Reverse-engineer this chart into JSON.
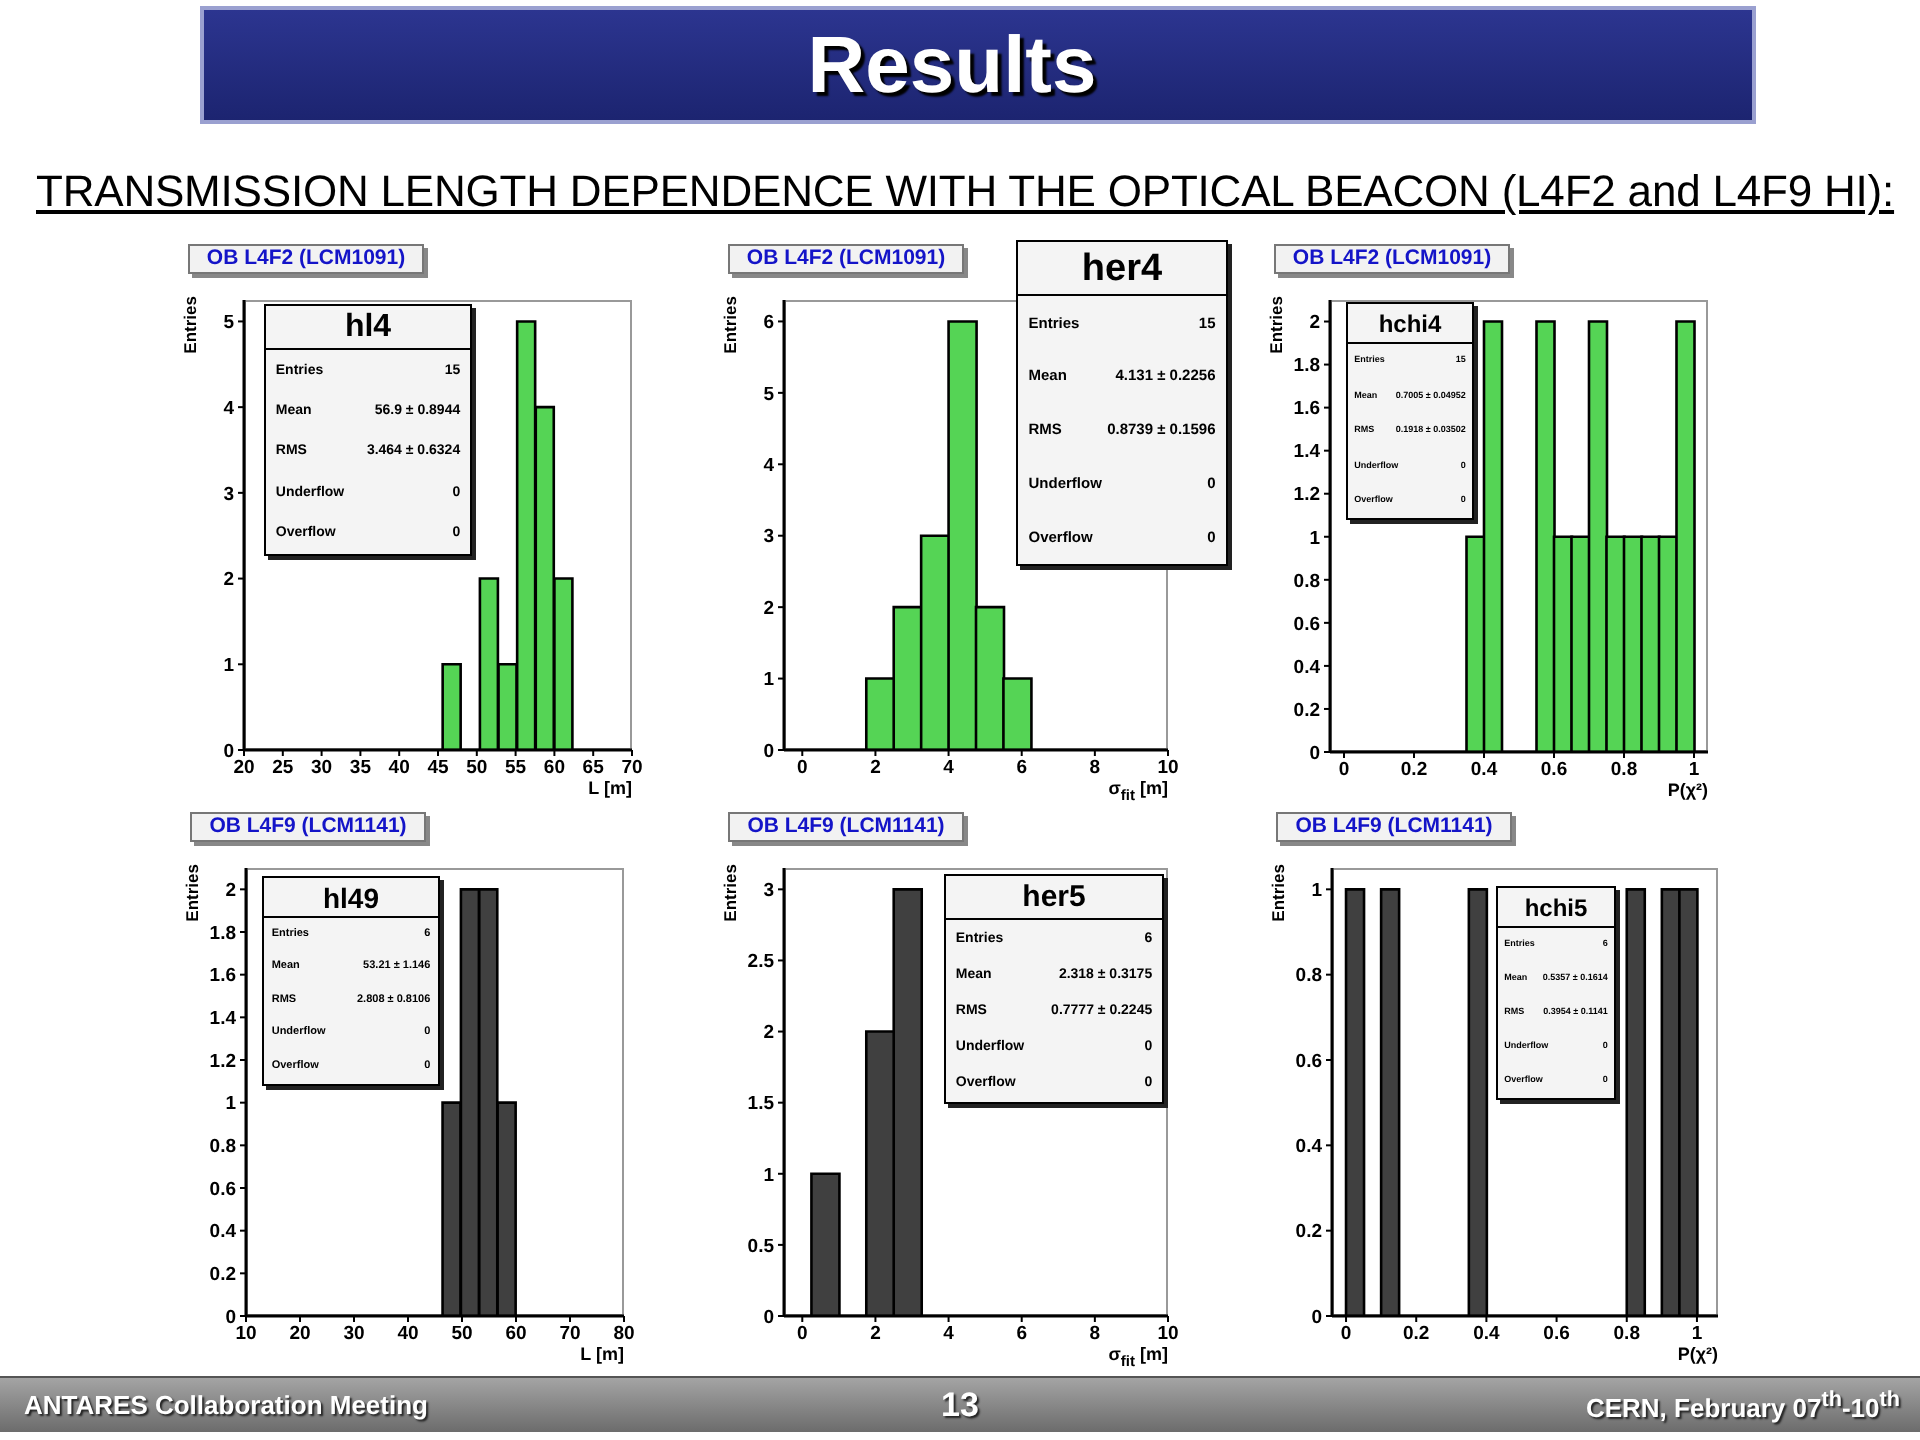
{
  "chart_data": [
    {
      "type": "other",
      "title": "Results",
      "subtitle": "TRANSMISSION LENGTH DEPENDENCE WITH THE OPTICAL BEACON (L4F2 and L4F9 HI):"
    },
    {
      "type": "histogram",
      "title": "OB L4F2 (LCM1091)",
      "xlabel": "L [m]",
      "ylabel": "Entries",
      "bins": [
        45.6,
        48,
        50.4,
        52.8,
        55.2,
        57.6,
        60,
        62.4
      ],
      "values": [
        1,
        0,
        2,
        1,
        5,
        4,
        2
      ],
      "color": "#55d455",
      "xlim": [
        20,
        70
      ],
      "xticks": [
        20,
        25,
        30,
        35,
        40,
        45,
        50,
        55,
        60,
        65,
        70
      ],
      "ylim": [
        0,
        5.25
      ],
      "yticks": [
        0,
        1,
        2,
        3,
        4,
        5
      ],
      "annotations": [
        "hl4",
        "Entries",
        "15",
        "Mean",
        "56.9 ± 0.8944",
        "RMS",
        "3.464 ± 0.6324",
        "Underflow",
        "0",
        "Overflow",
        "0"
      ]
    },
    {
      "type": "histogram",
      "title": "OB L4F2 (LCM1091)",
      "xlabel": "σ$_{fit}$ [m]",
      "ylabel": "Entries",
      "bins": [
        1.75,
        2.5,
        3.25,
        4,
        4.75,
        5.5,
        6.25
      ],
      "values": [
        1,
        2,
        3,
        6,
        2,
        1
      ],
      "color": "#55d455",
      "xlim": [
        -0.5,
        10
      ],
      "xticks": [
        0,
        2,
        4,
        6,
        8,
        10
      ],
      "ylim": [
        0,
        6.3
      ],
      "yticks": [
        0,
        1,
        2,
        3,
        4,
        5,
        6
      ],
      "annotations": [
        "her4",
        "Entries",
        "15",
        "Mean",
        "4.131 ± 0.2256",
        "RMS",
        "0.8739 ± 0.1596",
        "Underflow",
        "0",
        "Overflow",
        "0"
      ]
    },
    {
      "type": "histogram",
      "title": "OB L4F2 (LCM1091)",
      "xlabel": "P(χ²)",
      "ylabel": "Entries",
      "bins": [
        0.35,
        0.4,
        0.45,
        0.5,
        0.55,
        0.6,
        0.65,
        0.7,
        0.75,
        0.8,
        0.85,
        0.9,
        0.95,
        1
      ],
      "values": [
        1,
        2,
        0,
        0,
        2,
        1,
        1,
        2,
        1,
        1,
        1,
        1,
        2
      ],
      "color": "#55d455",
      "xlim": [
        -0.04,
        1.04
      ],
      "xticks": [
        0,
        0.2,
        0.4,
        0.6,
        0.8,
        1
      ],
      "ylim": [
        0,
        2.1
      ],
      "yticks": [
        0,
        0.2,
        0.4,
        0.6,
        0.8,
        1,
        1.2,
        1.4,
        1.6,
        1.8,
        2
      ],
      "annotations": [
        "hchi4",
        "Entries",
        "15",
        "Mean",
        "0.7005 ± 0.04952",
        "RMS",
        "0.1918 ± 0.03502",
        "Underflow",
        "0",
        "Overflow",
        "0"
      ]
    },
    {
      "type": "histogram",
      "title": "OB L4F9 (LCM1141)",
      "xlabel": "L [m]",
      "ylabel": "Entries",
      "bins": [
        46.4,
        49.8,
        53.2,
        56.6,
        60
      ],
      "values": [
        1,
        2,
        2,
        1
      ],
      "color": "#404040",
      "xlim": [
        10,
        80
      ],
      "xticks": [
        10,
        20,
        30,
        40,
        50,
        60,
        70,
        80
      ],
      "ylim": [
        0,
        2.1
      ],
      "yticks": [
        0,
        0.2,
        0.4,
        0.6,
        0.8,
        1,
        1.2,
        1.4,
        1.6,
        1.8,
        2
      ],
      "annotations": [
        "hl49",
        "Entries",
        "6",
        "Mean",
        "53.21 ± 1.146",
        "RMS",
        "2.808 ± 0.8106",
        "Underflow",
        "0",
        "Overflow",
        "0"
      ]
    },
    {
      "type": "histogram",
      "title": "OB L4F9 (LCM1141)",
      "xlabel": "σ$_{fit}$ [m]",
      "ylabel": "Entries",
      "bins": [
        0.25,
        1,
        1.75,
        2.5,
        3.25
      ],
      "values": [
        1,
        0,
        2,
        3
      ],
      "color": "#404040",
      "xlim": [
        -0.5,
        10
      ],
      "xticks": [
        0,
        2,
        4,
        6,
        8,
        10
      ],
      "ylim": [
        0,
        3.15
      ],
      "yticks": [
        0,
        0.5,
        1,
        1.5,
        2,
        2.5,
        3
      ],
      "annotations": [
        "her5",
        "Entries",
        "6",
        "Mean",
        "2.318 ± 0.3175",
        "RMS",
        "0.7777 ± 0.2245",
        "Underflow",
        "0",
        "Overflow",
        "0"
      ]
    },
    {
      "type": "histogram",
      "title": "OB L4F9 (LCM1141)",
      "xlabel": "P(χ²)",
      "ylabel": "Entries",
      "bins": [
        0,
        0.05,
        0.1,
        0.15,
        0.2,
        0.25,
        0.3,
        0.35,
        0.4,
        0.45,
        0.5,
        0.55,
        0.6,
        0.65,
        0.7,
        0.75,
        0.8,
        0.85,
        0.9,
        0.95,
        1
      ],
      "values": [
        1,
        0,
        1,
        0,
        0,
        0,
        0,
        1,
        0,
        0,
        0,
        0,
        0,
        0,
        0,
        0,
        1,
        0,
        1,
        1
      ],
      "color": "#404040",
      "xlim": [
        -0.04,
        1.06
      ],
      "xticks": [
        0,
        0.2,
        0.4,
        0.6,
        0.8,
        1
      ],
      "ylim": [
        0,
        1.05
      ],
      "yticks": [
        0,
        0.2,
        0.4,
        0.6,
        0.8,
        1
      ],
      "annotations": [
        "hchi5",
        "Entries",
        "6",
        "Mean",
        "0.5357 ± 0.1614",
        "RMS",
        "0.3954 ± 0.1141",
        "Underflow",
        "0",
        "Overflow",
        "0"
      ]
    },
    {
      "type": "other",
      "annotations": [
        "ANTARES Collaboration Meeting",
        "13",
        "CERN, February 07$^{th}$-10$^{th}$"
      ]
    }
  ]
}
